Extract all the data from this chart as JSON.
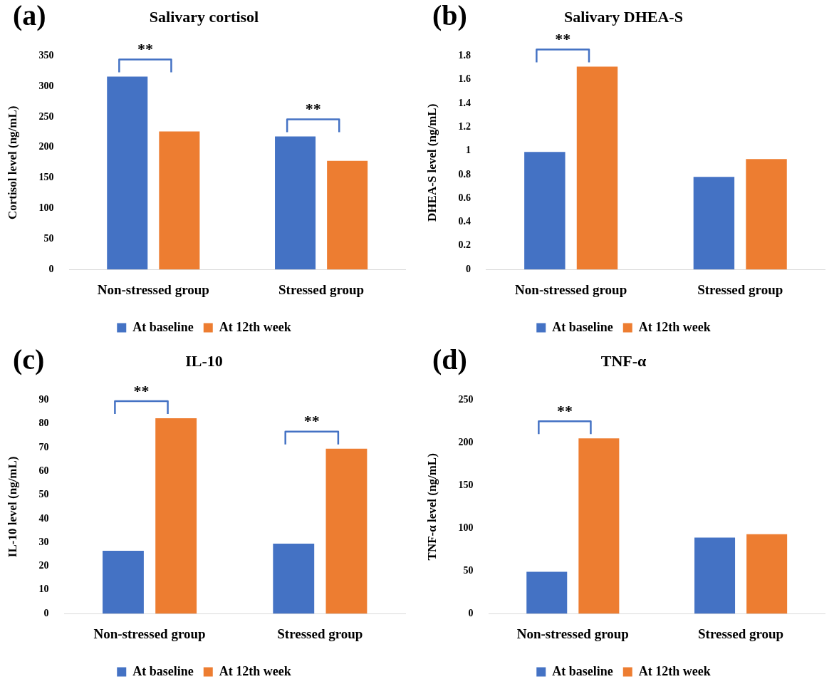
{
  "chart_data": [
    {
      "type": "bar",
      "title": "Salivary cortisol",
      "ylabel": "Cortisol level (ng/mL)",
      "categories": [
        "Non-stressed group",
        "Stressed group"
      ],
      "series": [
        {
          "name": "At baseline",
          "color": "#4472c4",
          "values": [
            316,
            218
          ]
        },
        {
          "name": "At 12th week",
          "color": "#ed7d31",
          "values": [
            226,
            178
          ]
        }
      ],
      "ylim": [
        0,
        350
      ],
      "yticks": [
        0,
        50,
        100,
        150,
        200,
        250,
        300,
        350
      ],
      "grid": false,
      "legend": "bottom",
      "annotations": [
        "(a)",
        "**",
        "**"
      ]
    },
    {
      "type": "bar",
      "title": "Salivary DHEA-S",
      "ylabel": "DHEA-S level (ng/mL)",
      "categories": [
        "Non-stressed group",
        "Stressed group"
      ],
      "series": [
        {
          "name": "At baseline",
          "color": "#4472c4",
          "values": [
            0.99,
            0.78
          ]
        },
        {
          "name": "At 12th week",
          "color": "#ed7d31",
          "values": [
            1.71,
            0.93
          ]
        }
      ],
      "ylim": [
        0,
        1.8
      ],
      "yticks": [
        0,
        0.2,
        0.4,
        0.6,
        0.8,
        1,
        1.2,
        1.4,
        1.6,
        1.8
      ],
      "grid": false,
      "legend": "bottom",
      "annotations": [
        "(b)",
        "**"
      ]
    },
    {
      "type": "bar",
      "title": "IL-10",
      "ylabel": "IL-10 level (ng/mL)",
      "categories": [
        "Non-stressed group",
        "Stressed group"
      ],
      "series": [
        {
          "name": "At baseline",
          "color": "#4472c4",
          "values": [
            26.5,
            29.5
          ]
        },
        {
          "name": "At 12th week",
          "color": "#ed7d31",
          "values": [
            82.3,
            69.5
          ]
        }
      ],
      "ylim": [
        0,
        90
      ],
      "yticks": [
        0,
        10,
        20,
        30,
        40,
        50,
        60,
        70,
        80,
        90
      ],
      "grid": false,
      "legend": "bottom",
      "annotations": [
        "(c)",
        "**",
        "**"
      ]
    },
    {
      "type": "bar",
      "title": "TNF-α",
      "ylabel": "TNF-α level (ng/mL)",
      "categories": [
        "Non-stressed group",
        "Stressed group"
      ],
      "series": [
        {
          "name": "At baseline",
          "color": "#4472c4",
          "values": [
            49,
            89
          ]
        },
        {
          "name": "At 12th week",
          "color": "#ed7d31",
          "values": [
            205,
            93
          ]
        }
      ],
      "ylim": [
        0,
        250
      ],
      "yticks": [
        0,
        50,
        100,
        150,
        200,
        250
      ],
      "grid": false,
      "legend": "bottom",
      "annotations": [
        "(d)",
        "**"
      ]
    }
  ]
}
